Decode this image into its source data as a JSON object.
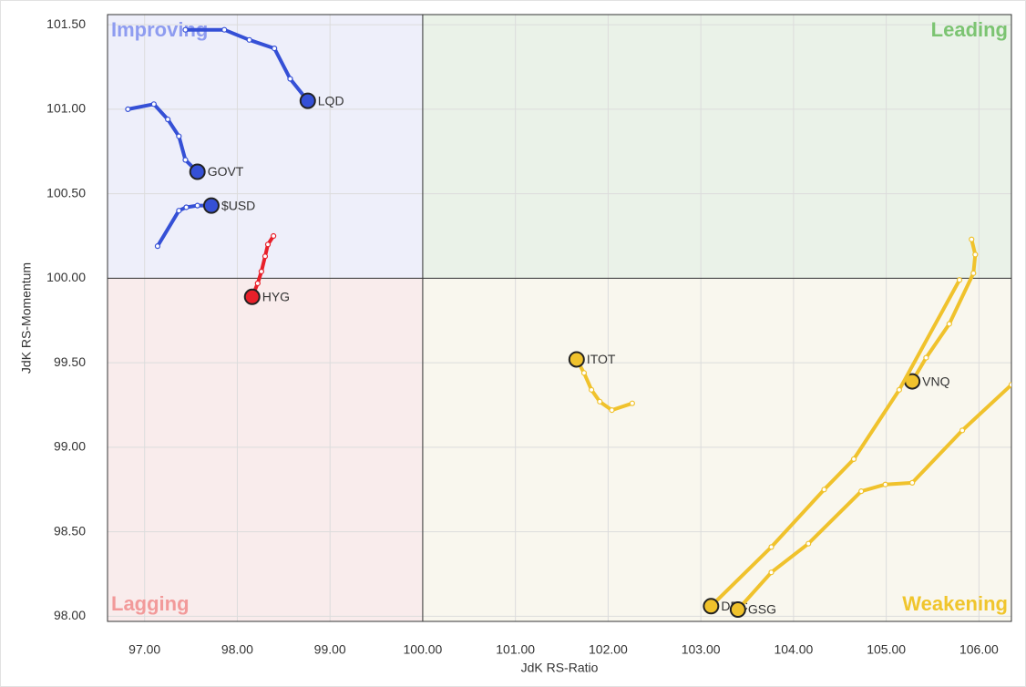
{
  "chart_data": {
    "type": "rrg",
    "x_label": "JdK RS-Ratio",
    "y_label": "JdK RS-Momentum",
    "xlim": [
      96.6,
      106.35
    ],
    "ylim": [
      97.97,
      101.56
    ],
    "xticks": [
      {
        "value": 97,
        "label": "97.00"
      },
      {
        "value": 98,
        "label": "98.00"
      },
      {
        "value": 99,
        "label": "99.00"
      },
      {
        "value": 100,
        "label": "100.00"
      },
      {
        "value": 101,
        "label": "101.00"
      },
      {
        "value": 102,
        "label": "102.00"
      },
      {
        "value": 103,
        "label": "103.00"
      },
      {
        "value": 104,
        "label": "104.00"
      },
      {
        "value": 105,
        "label": "105.00"
      },
      {
        "value": 106,
        "label": "106.00"
      }
    ],
    "yticks": [
      {
        "value": 98,
        "label": "98.00"
      },
      {
        "value": 98.5,
        "label": "98.50"
      },
      {
        "value": 99,
        "label": "99.00"
      },
      {
        "value": 99.5,
        "label": "99.50"
      },
      {
        "value": 100,
        "label": "100.00"
      },
      {
        "value": 100.5,
        "label": "100.50"
      },
      {
        "value": 101,
        "label": "101.00"
      },
      {
        "value": 101.5,
        "label": "101.50"
      }
    ],
    "grid": true,
    "quadrant_center": {
      "x": 100,
      "y": 100
    },
    "quadrants": [
      {
        "name": "Improving",
        "corner": "top-left",
        "color": "#eeeffa",
        "label_color": "#8e9cf0"
      },
      {
        "name": "Leading",
        "corner": "top-right",
        "color": "#eaf2e8",
        "label_color": "#7cc472"
      },
      {
        "name": "Lagging",
        "corner": "bottom-left",
        "color": "#f9ecec",
        "label_color": "#f29a9a"
      },
      {
        "name": "Weakening",
        "corner": "bottom-right",
        "color": "#f9f7ee",
        "label_color": "#f0c52c"
      }
    ],
    "series": [
      {
        "name": "LQD",
        "color": "#3550d6",
        "x": [
          97.44,
          97.86,
          98.13,
          98.4,
          98.57,
          98.76
        ],
        "values": [
          101.47,
          101.47,
          101.41,
          101.36,
          101.18,
          101.05
        ]
      },
      {
        "name": "GOVT",
        "color": "#3550d6",
        "x": [
          96.82,
          97.1,
          97.25,
          97.37,
          97.44,
          97.57
        ],
        "values": [
          101.0,
          101.03,
          100.94,
          100.84,
          100.7,
          100.63
        ]
      },
      {
        "name": "$USD",
        "color": "#3550d6",
        "x": [
          97.14,
          97.37,
          97.45,
          97.57,
          97.72
        ],
        "values": [
          100.19,
          100.4,
          100.42,
          100.43,
          100.43
        ]
      },
      {
        "name": "HYG",
        "color": "#e8202a",
        "x": [
          98.39,
          98.33,
          98.3,
          98.26,
          98.22,
          98.16
        ],
        "values": [
          100.25,
          100.2,
          100.13,
          100.04,
          99.97,
          99.89
        ]
      },
      {
        "name": "ITOT",
        "color": "#f0c22c",
        "x": [
          102.26,
          102.04,
          101.91,
          101.82,
          101.74,
          101.66
        ],
        "values": [
          99.26,
          99.22,
          99.27,
          99.34,
          99.44,
          99.52
        ]
      },
      {
        "name": "VNQ",
        "color": "#f0c22c",
        "x": [
          105.92,
          105.96,
          105.94,
          105.68,
          105.43,
          105.28
        ],
        "values": [
          100.23,
          100.14,
          100.03,
          99.73,
          99.53,
          99.39
        ]
      },
      {
        "name": "DBC",
        "color": "#f0c22c",
        "x": [
          105.79,
          105.14,
          104.65,
          104.33,
          103.76,
          103.11
        ],
        "values": [
          99.99,
          99.34,
          98.93,
          98.75,
          98.41,
          98.06
        ]
      },
      {
        "name": "GSG",
        "color": "#f0c22c",
        "x": [
          106.35,
          105.82,
          105.28,
          104.99,
          104.73,
          104.16,
          103.76,
          103.4
        ],
        "values": [
          99.37,
          99.1,
          98.79,
          98.78,
          98.74,
          98.43,
          98.26,
          98.04
        ]
      }
    ]
  }
}
